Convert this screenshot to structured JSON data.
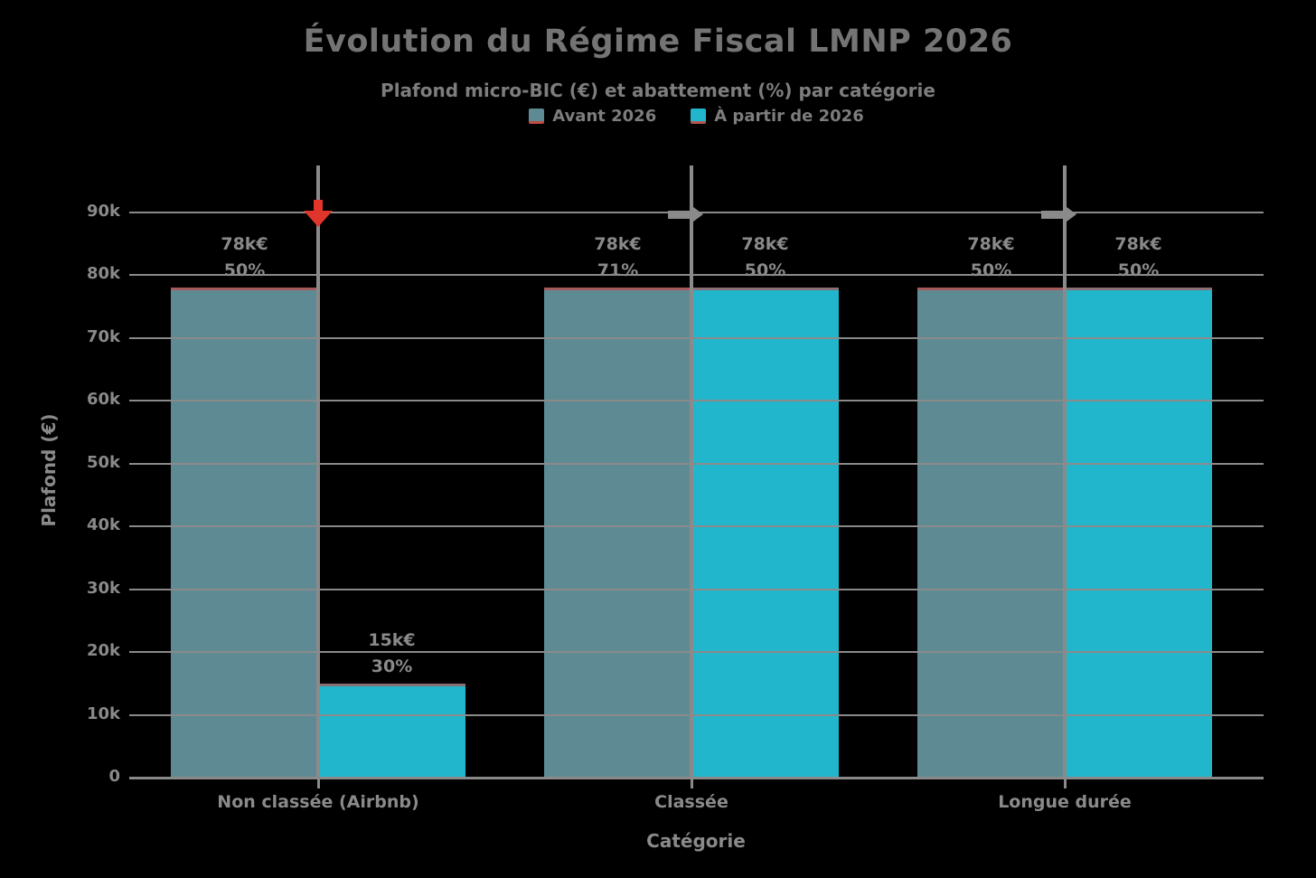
{
  "title": "Évolution du Régime Fiscal LMNP 2026",
  "subtitle": "Plafond micro-BIC (€) et abattement (%) par catégorie",
  "axes": {
    "x_title": "Catégorie",
    "y_title": "Plafond (€)"
  },
  "colors": {
    "background": "#000000",
    "text": "#8a8a8a",
    "grid": "#8a8a8a",
    "series_before": "#5e8a94",
    "series_after": "#22b6cd",
    "accent_red": "#e0352b"
  },
  "chart_data": {
    "type": "bar",
    "title": "Évolution du Régime Fiscal LMNP 2026",
    "subtitle": "Plafond micro-BIC (€) et abattement (%) par catégorie",
    "xlabel": "Catégorie",
    "ylabel": "Plafond (€)",
    "legend_position": "top-center",
    "grid": true,
    "ylim": [
      0,
      90000
    ],
    "yticks": [
      {
        "value": 0,
        "label": "0"
      },
      {
        "value": 10000,
        "label": "10k"
      },
      {
        "value": 20000,
        "label": "20k"
      },
      {
        "value": 30000,
        "label": "30k"
      },
      {
        "value": 40000,
        "label": "40k"
      },
      {
        "value": 50000,
        "label": "50k"
      },
      {
        "value": 60000,
        "label": "60k"
      },
      {
        "value": 70000,
        "label": "70k"
      },
      {
        "value": 80000,
        "label": "80k"
      },
      {
        "value": 90000,
        "label": "90k"
      }
    ],
    "categories": [
      "Non classée (Airbnb)",
      "Classée",
      "Longue durée"
    ],
    "series": [
      {
        "name": "Avant 2026",
        "color": "#5e8a94",
        "values": [
          78000,
          78000,
          78000
        ],
        "bar_labels": [
          [
            "78k€",
            "50%"
          ],
          [
            "78k€",
            "71%"
          ],
          [
            "78k€",
            "50%"
          ]
        ]
      },
      {
        "name": "À partir de 2026",
        "color": "#22b6cd",
        "values": [
          15000,
          78000,
          78000
        ],
        "bar_labels": [
          [
            "15k€",
            "30%"
          ],
          [
            "78k€",
            "50%"
          ],
          [
            "78k€",
            "50%"
          ]
        ]
      }
    ],
    "annotations": [
      {
        "category": "Non classée (Airbnb)",
        "arrow": "down",
        "color": "#e0352b"
      },
      {
        "category": "Classée",
        "arrow": "right",
        "color": "#8a8a8a"
      },
      {
        "category": "Longue durée",
        "arrow": "right",
        "color": "#8a8a8a"
      }
    ]
  }
}
